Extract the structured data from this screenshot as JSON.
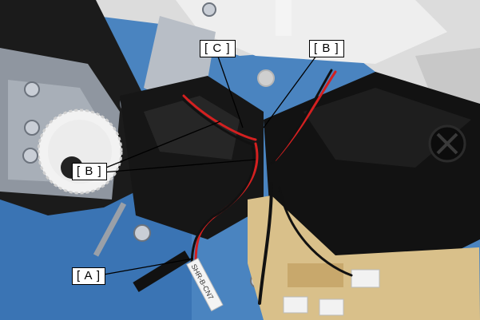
{
  "callouts": {
    "c": "[ C ]",
    "b_top": "[ B ]",
    "b_left": "[ B ]",
    "a": "[ A ]"
  },
  "cable_tag": "SHR-B-CN7",
  "colors": {
    "leader_line": "#000000",
    "callout_bg": "#ffffff",
    "cable_red": "#d42020",
    "cable_black": "#111111",
    "chassis_black": "#141414",
    "gear_white": "#f2f2f2",
    "board_tan": "#d9c08a",
    "background_blue": "#4a84c0"
  }
}
